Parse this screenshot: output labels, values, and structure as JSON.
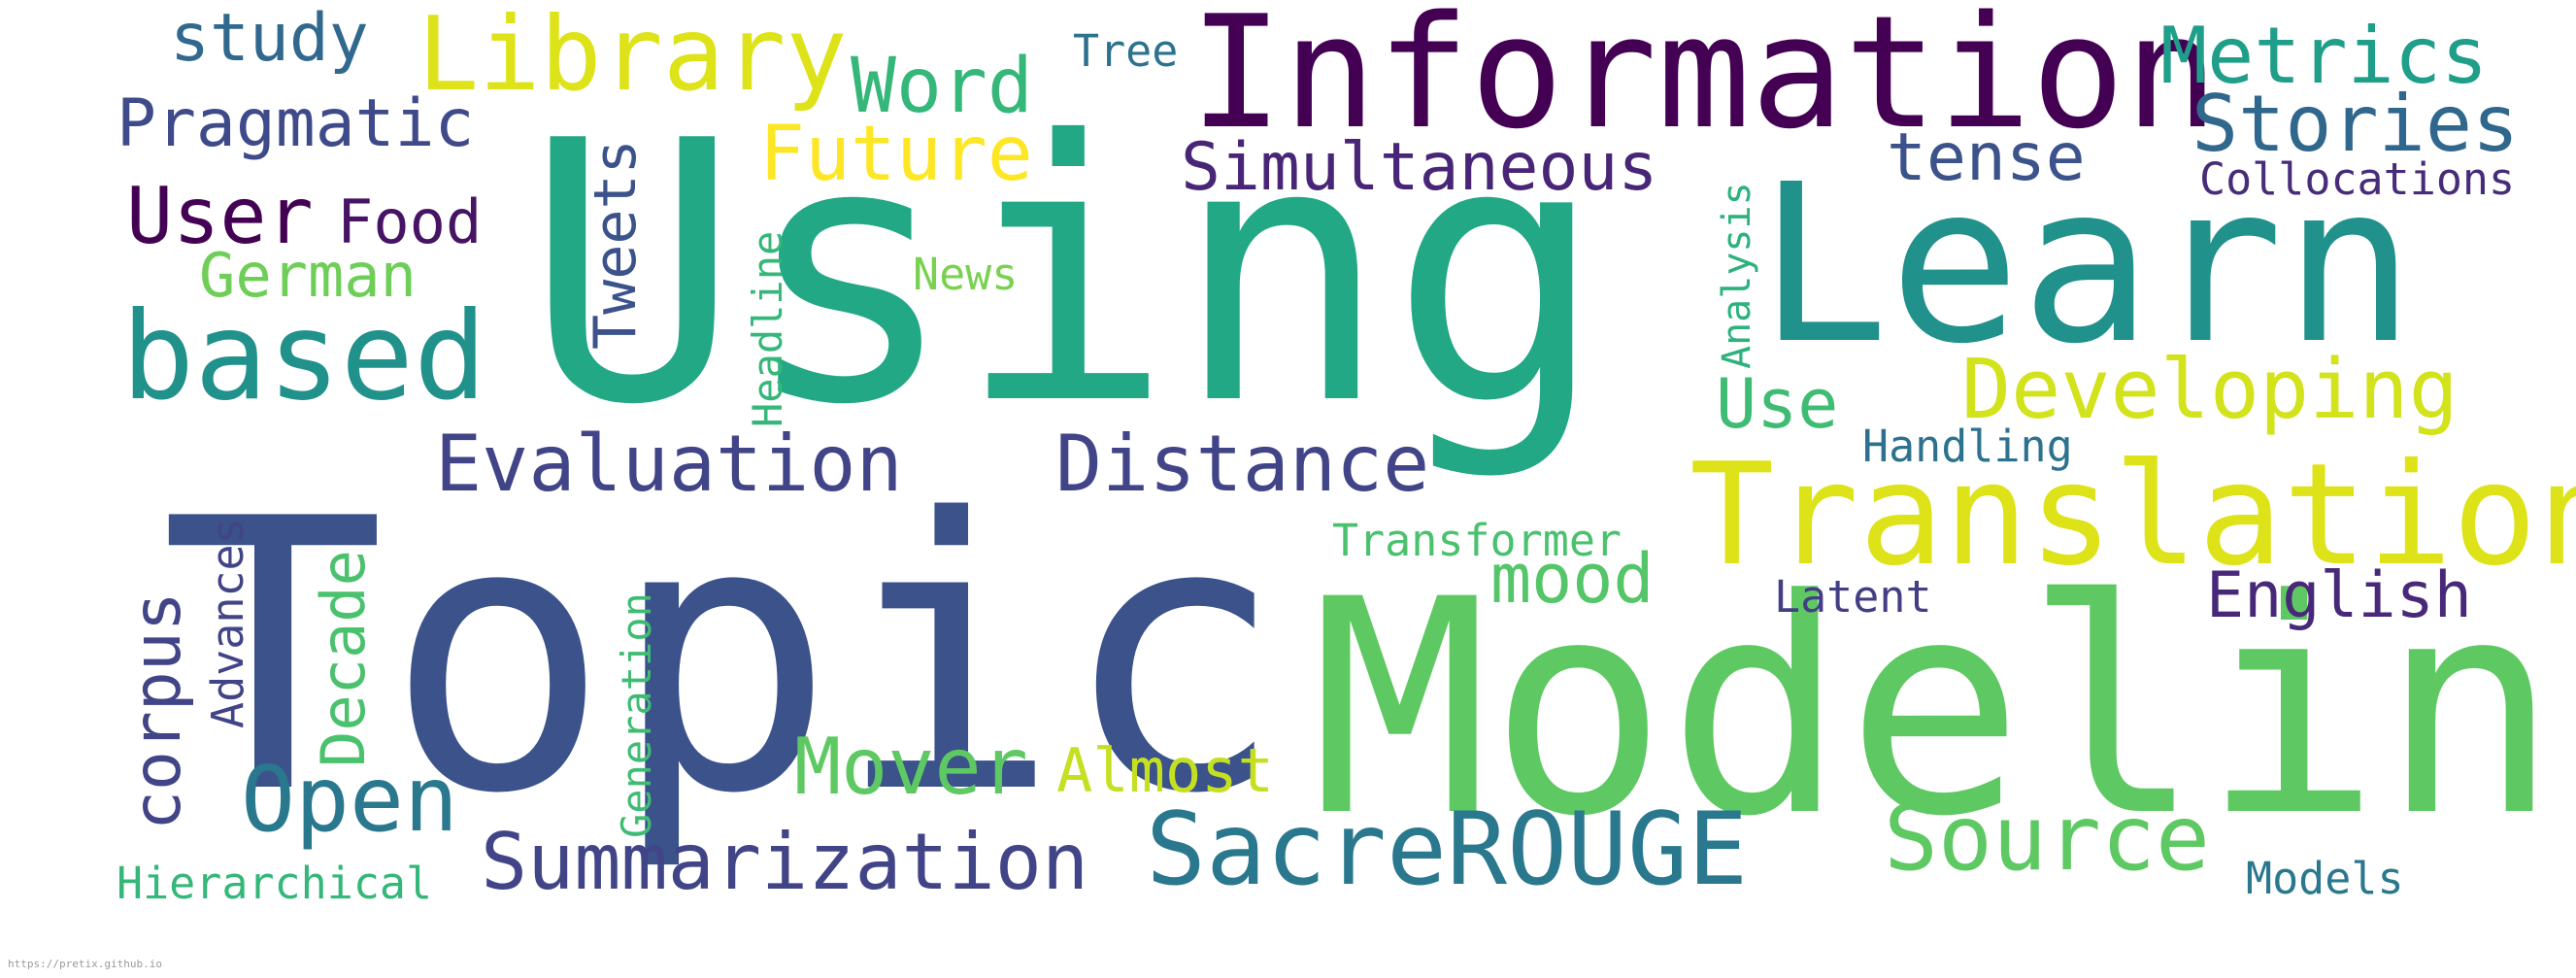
{
  "words": [
    {
      "text": "Using",
      "color": "#22a884"
    },
    {
      "text": "Topic",
      "color": "#3b528b"
    },
    {
      "text": "Modeling",
      "color": "#5ec962"
    },
    {
      "text": "Learn",
      "color": "#21918c"
    },
    {
      "text": "Information",
      "color": "#440154"
    },
    {
      "text": "Translation",
      "color": "#dde318"
    },
    {
      "text": "based",
      "color": "#21918c"
    },
    {
      "text": "Library",
      "color": "#dde318"
    },
    {
      "text": "Summarization",
      "color": "#414487"
    },
    {
      "text": "SacreROUGE",
      "color": "#2a788e"
    },
    {
      "text": "Evaluation",
      "color": "#414487"
    },
    {
      "text": "Distance",
      "color": "#414487"
    },
    {
      "text": "Developing",
      "color": "#d2e21b"
    },
    {
      "text": "Source",
      "color": "#5ec962"
    },
    {
      "text": "Open",
      "color": "#2a788e"
    },
    {
      "text": "Mover",
      "color": "#5ec962"
    },
    {
      "text": "Future",
      "color": "#fde725"
    },
    {
      "text": "Stories",
      "color": "#30678d"
    },
    {
      "text": "Metrics",
      "color": "#1f9e89"
    },
    {
      "text": "Word",
      "color": "#35b779"
    },
    {
      "text": "Pragmatic",
      "color": "#3e4a89"
    },
    {
      "text": "Simultaneous",
      "color": "#482576"
    },
    {
      "text": "English",
      "color": "#482878"
    },
    {
      "text": "Almost",
      "color": "#c5e021"
    },
    {
      "text": "mood",
      "color": "#54c568"
    },
    {
      "text": "User",
      "color": "#440154"
    },
    {
      "text": "study",
      "color": "#31688e"
    },
    {
      "text": "tense",
      "color": "#3b528b"
    },
    {
      "text": "Food",
      "color": "#471365"
    },
    {
      "text": "German",
      "color": "#6ece58"
    },
    {
      "text": "Use",
      "color": "#3fbc73"
    },
    {
      "text": "Tweets",
      "color": "#3b528b"
    },
    {
      "text": "corpus",
      "color": "#414487"
    },
    {
      "text": "Decade",
      "color": "#4ac16d"
    },
    {
      "text": "Collocations",
      "color": "#472c7a"
    },
    {
      "text": "Transformer",
      "color": "#4ac16d"
    },
    {
      "text": "Hierarchical",
      "color": "#35b779"
    },
    {
      "text": "Handling",
      "color": "#2c728e"
    },
    {
      "text": "Latent",
      "color": "#433e85"
    },
    {
      "text": "Models",
      "color": "#2a788e"
    },
    {
      "text": "Advances",
      "color": "#414487"
    },
    {
      "text": "Analysis",
      "color": "#2db27d"
    },
    {
      "text": "Headline",
      "color": "#35b779"
    },
    {
      "text": "Generation",
      "color": "#3fbc73"
    },
    {
      "text": "News",
      "color": "#7ad151"
    },
    {
      "text": "Tree",
      "color": "#2c728e"
    }
  ],
  "footer": {
    "url": "https://pretix.github.io"
  }
}
